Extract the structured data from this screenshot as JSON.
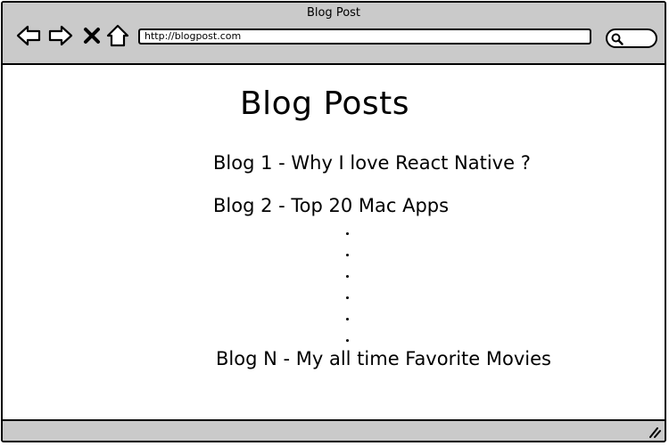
{
  "window": {
    "title": "Blog Post"
  },
  "toolbar": {
    "back_icon": "arrow-left-icon",
    "forward_icon": "arrow-right-icon",
    "stop_icon": "close-icon",
    "home_icon": "home-icon",
    "url": "http://blogpost.com",
    "search_icon": "search-icon"
  },
  "page": {
    "title": "Blog Posts",
    "posts": [
      "Blog 1 - Why I love React Native ?",
      "Blog 2  - Top 20 Mac Apps",
      "Blog N - My all time Favorite Movies"
    ],
    "ellipsis_dots": 6
  },
  "colors": {
    "chrome": "#cacaca",
    "border": "#000000",
    "background": "#ffffff"
  }
}
